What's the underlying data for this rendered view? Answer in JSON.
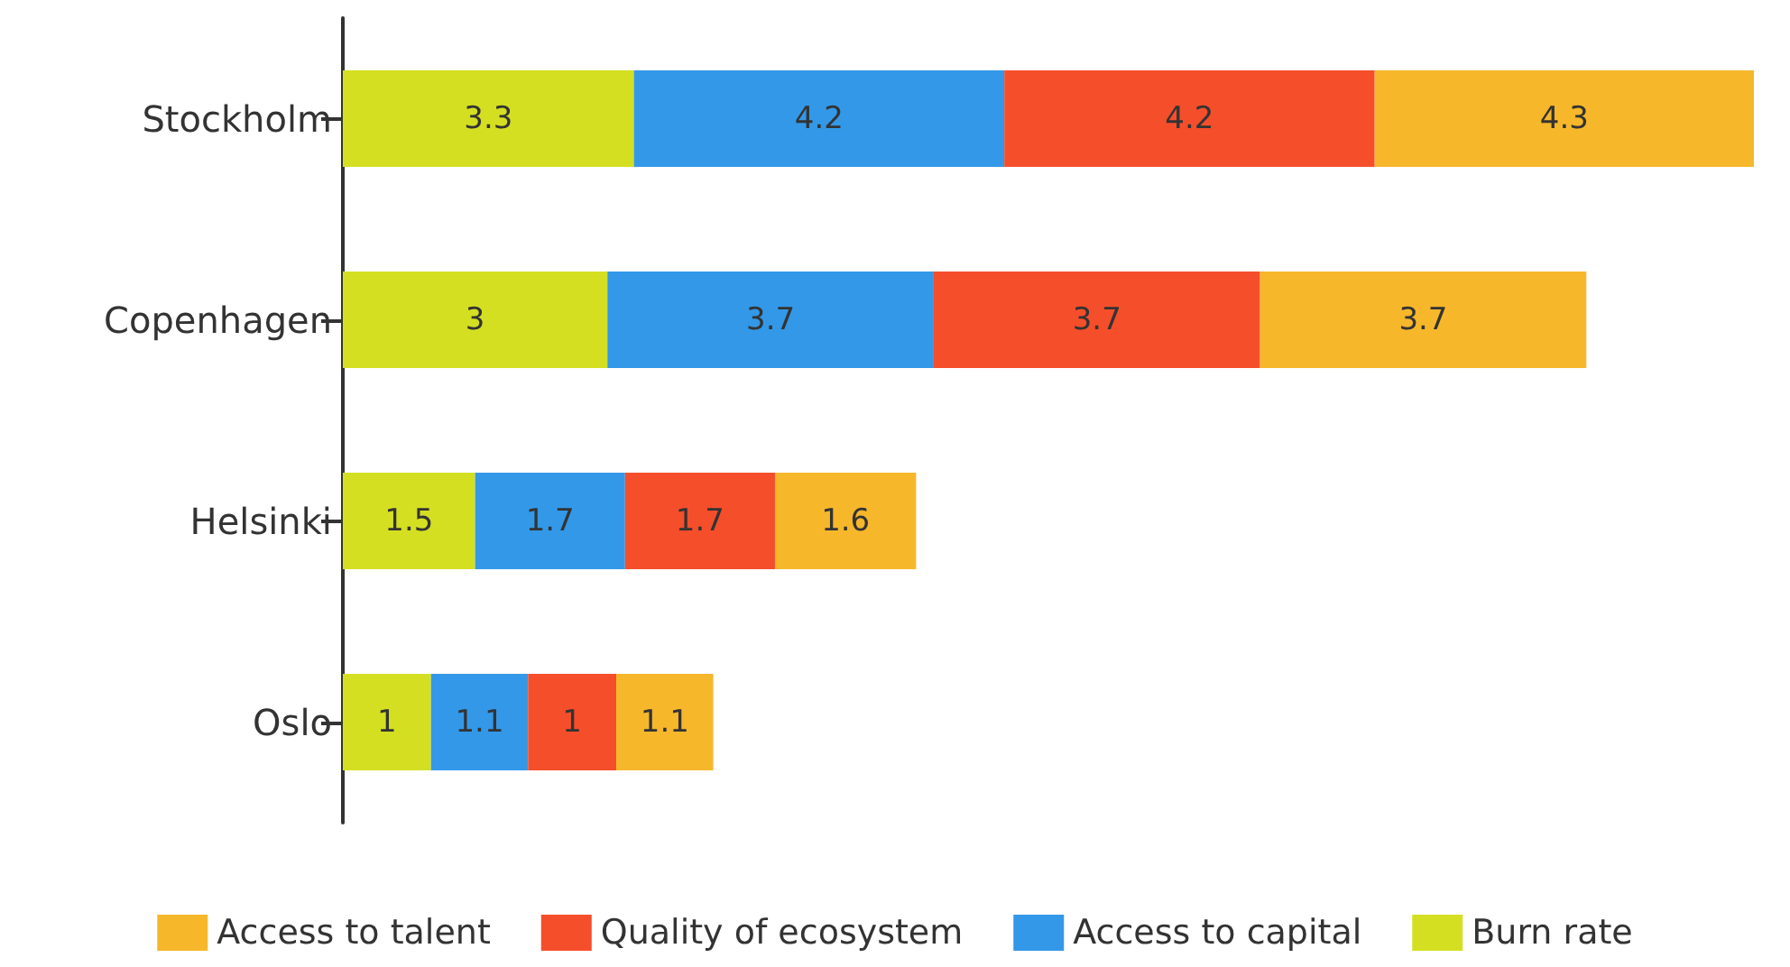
{
  "chart_data": {
    "type": "bar",
    "orientation": "horizontal",
    "stacked": true,
    "data_labels": true,
    "legend": "bottom",
    "grid": false,
    "tick_labels": "y",
    "categories": [
      "Stockholm",
      "Copenhagen",
      "Helsinki",
      "Oslo"
    ],
    "series": [
      {
        "name": "Burn rate",
        "color": "#d4df22",
        "values": [
          3.3,
          3,
          1.5,
          1
        ]
      },
      {
        "name": "Access to capital",
        "color": "#3398e8",
        "values": [
          4.2,
          3.7,
          1.7,
          1.1
        ]
      },
      {
        "name": "Quality of ecosystem",
        "color": "#f54e2b",
        "values": [
          4.2,
          3.7,
          1.7,
          1
        ]
      },
      {
        "name": "Access to talent",
        "color": "#f6b72b",
        "values": [
          4.3,
          3.7,
          1.6,
          1.1
        ]
      }
    ]
  }
}
